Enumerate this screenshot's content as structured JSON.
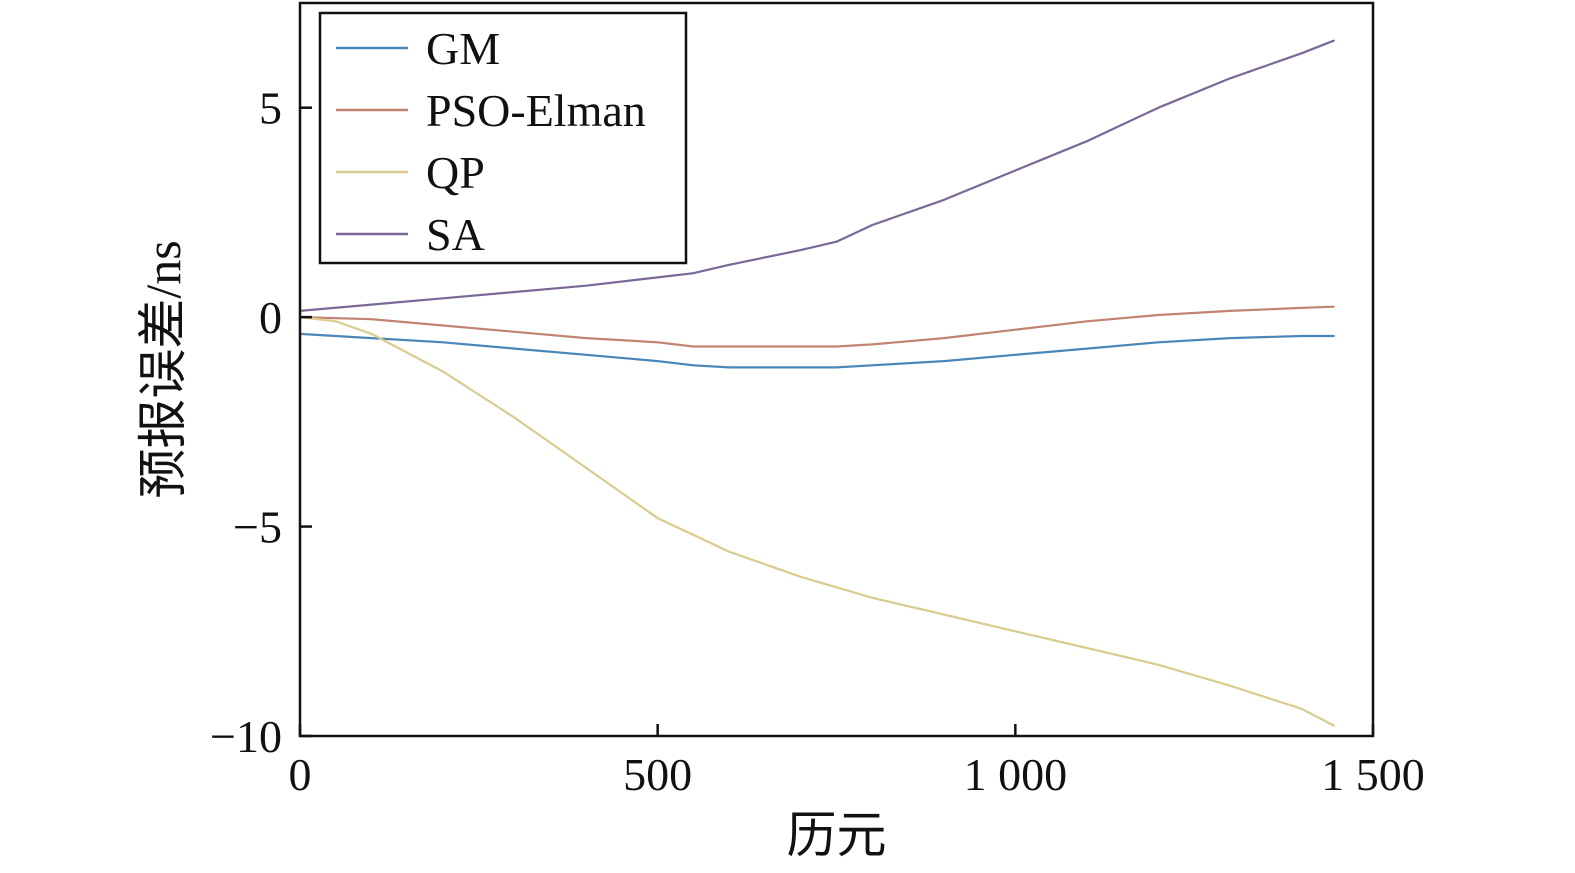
{
  "chart_data": {
    "type": "line",
    "title": "",
    "xlabel": "历元",
    "ylabel": "预报误差/ns",
    "xlim": [
      0,
      1500
    ],
    "ylim": [
      -10,
      7.5
    ],
    "x_ticks": [
      0,
      500,
      1000,
      1500
    ],
    "x_tick_labels": [
      "0",
      "500",
      "1 000",
      "1 500"
    ],
    "y_ticks": [
      -10,
      -5,
      0,
      5
    ],
    "y_tick_labels": [
      "−10",
      "−5",
      "0",
      "5"
    ],
    "grid": false,
    "legend_position": "top-left",
    "series": [
      {
        "name": "GM",
        "color": "#4a86b8",
        "x": [
          0,
          100,
          200,
          300,
          400,
          500,
          550,
          600,
          650,
          700,
          750,
          800,
          900,
          1000,
          1100,
          1200,
          1300,
          1400,
          1445
        ],
        "y": [
          -0.4,
          -0.5,
          -0.6,
          -0.75,
          -0.9,
          -1.05,
          -1.15,
          -1.2,
          -1.2,
          -1.2,
          -1.2,
          -1.15,
          -1.05,
          -0.9,
          -0.75,
          -0.6,
          -0.5,
          -0.45,
          -0.45
        ]
      },
      {
        "name": "PSO-Elman",
        "color": "#c08470",
        "x": [
          0,
          100,
          200,
          300,
          400,
          500,
          550,
          600,
          700,
          750,
          800,
          900,
          1000,
          1100,
          1200,
          1300,
          1400,
          1445
        ],
        "y": [
          0.0,
          -0.05,
          -0.2,
          -0.35,
          -0.5,
          -0.6,
          -0.7,
          -0.7,
          -0.7,
          -0.7,
          -0.65,
          -0.5,
          -0.3,
          -0.1,
          0.05,
          0.15,
          0.22,
          0.25
        ]
      },
      {
        "name": "QP",
        "color": "#d8cc8e",
        "x": [
          0,
          50,
          100,
          200,
          300,
          400,
          500,
          550,
          600,
          700,
          800,
          900,
          1000,
          1100,
          1200,
          1300,
          1400,
          1445
        ],
        "y": [
          0.0,
          -0.1,
          -0.4,
          -1.3,
          -2.4,
          -3.6,
          -4.8,
          -5.2,
          -5.6,
          -6.2,
          -6.7,
          -7.1,
          -7.5,
          -7.9,
          -8.3,
          -8.8,
          -9.35,
          -9.75
        ]
      },
      {
        "name": "SA",
        "color": "#7a6898",
        "x": [
          0,
          100,
          200,
          300,
          400,
          500,
          550,
          600,
          700,
          750,
          800,
          900,
          1000,
          1100,
          1200,
          1300,
          1400,
          1445
        ],
        "y": [
          0.15,
          0.3,
          0.45,
          0.6,
          0.75,
          0.95,
          1.05,
          1.25,
          1.6,
          1.8,
          2.2,
          2.8,
          3.5,
          4.2,
          5.0,
          5.7,
          6.3,
          6.6
        ]
      }
    ]
  }
}
